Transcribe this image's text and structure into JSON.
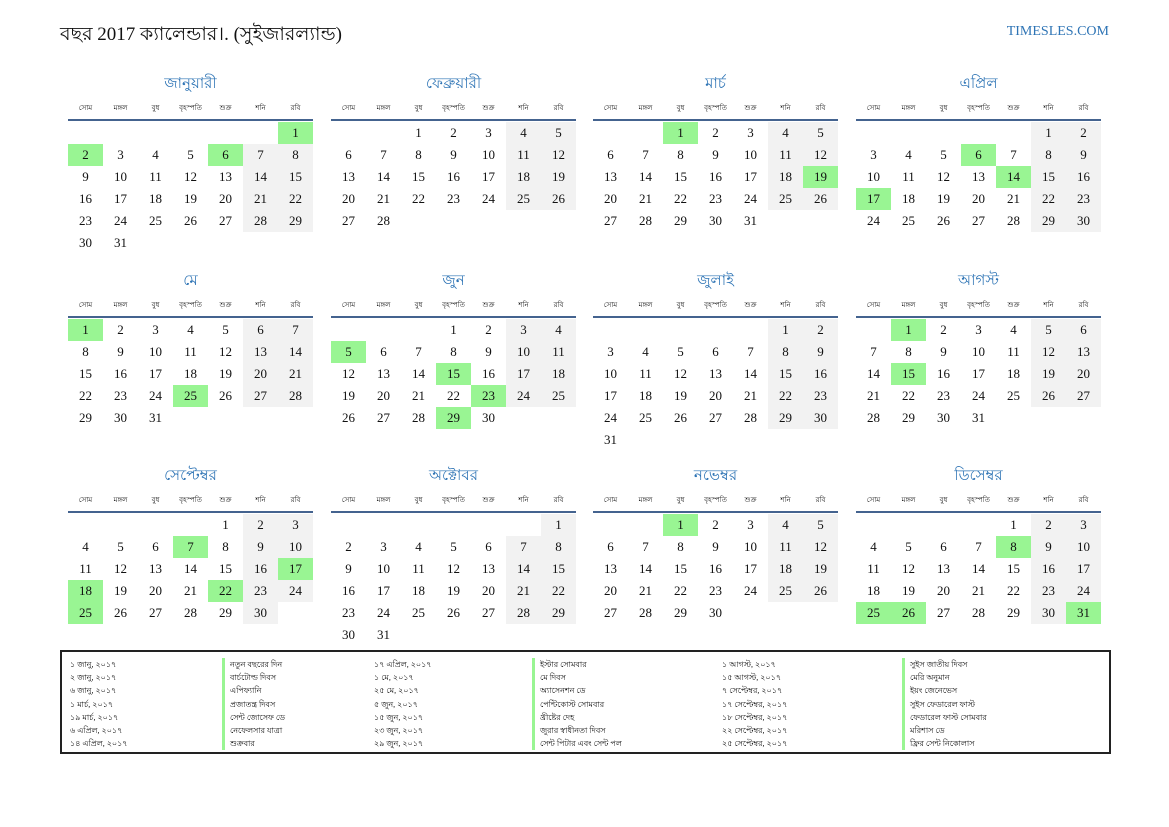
{
  "header": {
    "title": "বছর 2017 ক্যালেন্ডার।. (সুইজারল্যান্ড)",
    "brand": "TIMESLES.COM"
  },
  "day_names": [
    "সোম",
    "মঙ্গল",
    "বুধ",
    "বৃহস্পতি",
    "শুক্র",
    "শনি",
    "রবি"
  ],
  "colors": {
    "accent": "#2e74b5",
    "holiday": "#99f593",
    "weekend": "#f2f2f2"
  },
  "months": [
    {
      "name": "জানুয়ারী",
      "start": 6,
      "days": 31,
      "holidays": [
        1,
        2,
        6
      ]
    },
    {
      "name": "ফেব্রুয়ারী",
      "start": 2,
      "days": 28,
      "holidays": []
    },
    {
      "name": "মার্চ",
      "start": 2,
      "days": 31,
      "holidays": [
        1,
        19
      ]
    },
    {
      "name": "এপ্রিল",
      "start": 5,
      "days": 30,
      "holidays": [
        6,
        14,
        17
      ]
    },
    {
      "name": "মে",
      "start": 0,
      "days": 31,
      "holidays": [
        1,
        25
      ]
    },
    {
      "name": "জুন",
      "start": 3,
      "days": 30,
      "holidays": [
        5,
        15,
        23,
        29
      ]
    },
    {
      "name": "জুলাই",
      "start": 5,
      "days": 31,
      "holidays": []
    },
    {
      "name": "আগস্ট",
      "start": 1,
      "days": 31,
      "holidays": [
        1,
        15
      ]
    },
    {
      "name": "সেপ্টেম্বর",
      "start": 4,
      "days": 30,
      "holidays": [
        7,
        17,
        18,
        22,
        25
      ]
    },
    {
      "name": "অক্টোবর",
      "start": 6,
      "days": 31,
      "holidays": []
    },
    {
      "name": "নভেম্বর",
      "start": 2,
      "days": 30,
      "holidays": [
        1
      ]
    },
    {
      "name": "ডিসেম্বর",
      "start": 4,
      "days": 31,
      "holidays": [
        8,
        25,
        26,
        31
      ]
    }
  ],
  "holiday_list": [
    [
      {
        "date": "১ জানু, ২০১৭",
        "name": "নতুন বছরের দিন"
      },
      {
        "date": "২ জানু, ২০১৭",
        "name": "বার্চটোল্ড দিবস"
      },
      {
        "date": "৬ জানু, ২০১৭",
        "name": "এপিফ্যানি"
      },
      {
        "date": "১ মার্চ, ২০১৭",
        "name": "প্রজাতন্ত্র দিবস"
      },
      {
        "date": "১৯ মার্চ, ২০১৭",
        "name": "সেন্ট জোসেফ ডে"
      },
      {
        "date": "৬ এপ্রিল, ২০১৭",
        "name": "নেফেলসার যাত্রা"
      },
      {
        "date": "১৪ এপ্রিল, ২০১৭",
        "name": "শুক্রবার"
      }
    ],
    [
      {
        "date": "১৭ এপ্রিল, ২০১৭",
        "name": "ইস্টার সোমবার"
      },
      {
        "date": "১ মে, ২০১৭",
        "name": "মে দিবস"
      },
      {
        "date": "২৫ মে, ২০১৭",
        "name": "অ্যাসেনশন ডে"
      },
      {
        "date": "৫ জুন, ২০১৭",
        "name": "পেন্টিকোস্ট সোমবার"
      },
      {
        "date": "১৫ জুন, ২০১৭",
        "name": "খ্রীষ্টের দেহ"
      },
      {
        "date": "২৩ জুন, ২০১৭",
        "name": "জুরার স্বাধীনতা দিবস"
      },
      {
        "date": "২৯ জুন, ২০১৭",
        "name": "সেন্ট পিটার এবং সেন্ট পল"
      }
    ],
    [
      {
        "date": "১ আগস্ট, ২০১৭",
        "name": "সুইস জাতীয় দিবস"
      },
      {
        "date": "১৫ আগস্ট, ২০১৭",
        "name": "মেরি অনুমান"
      },
      {
        "date": "৭ সেপ্টেম্বর, ২০১৭",
        "name": "ইয়ং জেনেভেস"
      },
      {
        "date": "১৭ সেপ্টেম্বর, ২০১৭",
        "name": "সুইস ফেডারেল ফাস্ট"
      },
      {
        "date": "১৮ সেপ্টেম্বর, ২০১৭",
        "name": "ফেডারেল ফাস্ট সোমবার"
      },
      {
        "date": "২২ সেপ্টেম্বর, ২০১৭",
        "name": "মরিশাস ডে"
      },
      {
        "date": "২৫ সেপ্টেম্বর, ২০১৭",
        "name": "ফ্রির সেন্ট নিকোলাস"
      }
    ]
  ]
}
